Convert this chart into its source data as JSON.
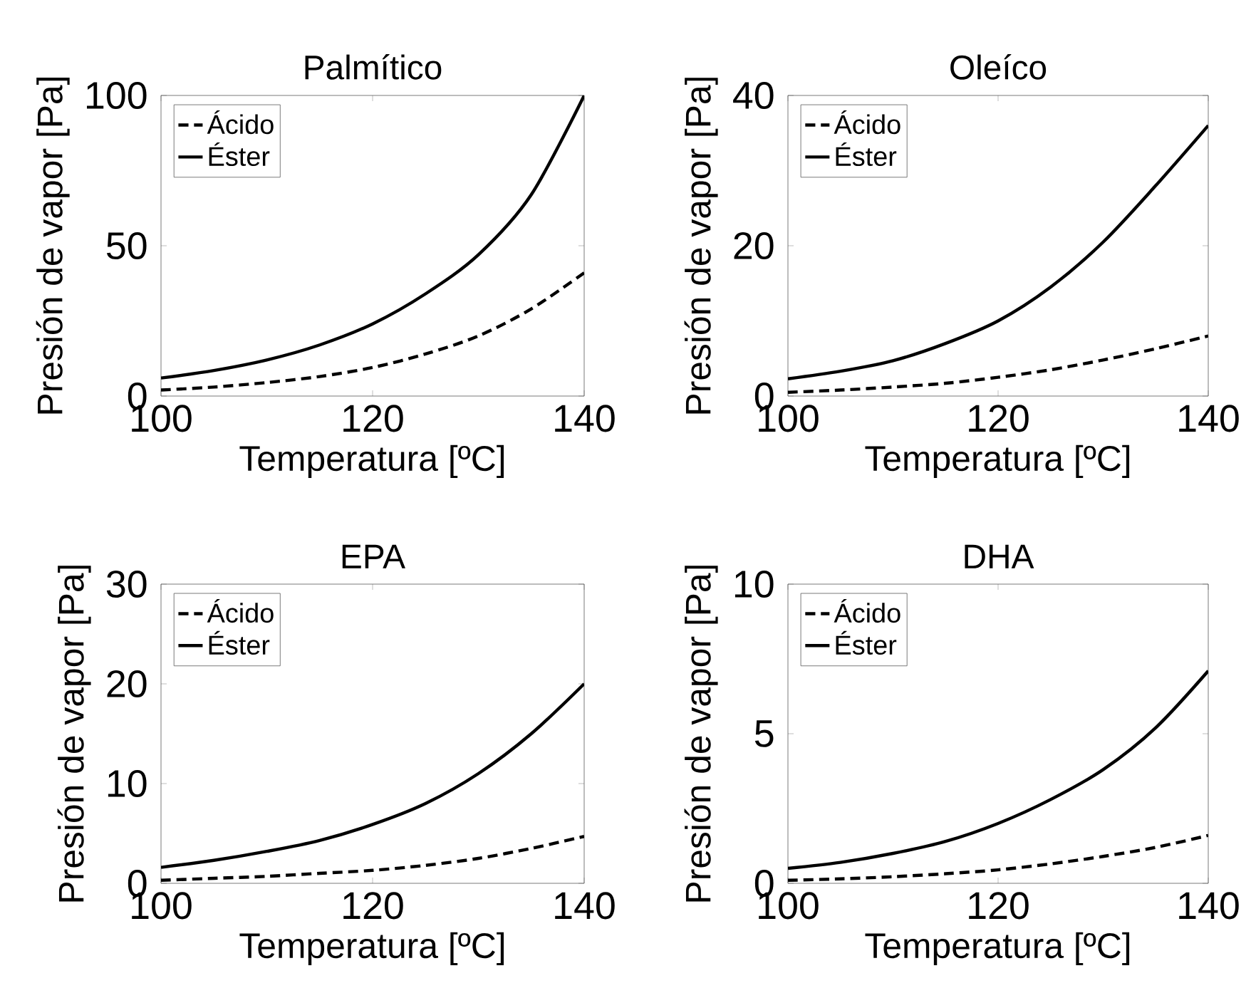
{
  "chart_data": [
    {
      "type": "line",
      "title": "Palmítico",
      "xlabel": "Temperatura [ºC]",
      "ylabel": "Presión de vapor [Pa]",
      "x": [
        100,
        105,
        110,
        115,
        120,
        125,
        130,
        135,
        140
      ],
      "xlim": [
        100,
        140
      ],
      "xticks": [
        100,
        120,
        140
      ],
      "ylim": [
        0,
        100
      ],
      "yticks": [
        0,
        50,
        100
      ],
      "legend": "top left",
      "grid": false,
      "series": [
        {
          "name": "Ácido",
          "color": "#000000",
          "line_style": "dashed",
          "values": [
            2,
            3,
            4.5,
            6.5,
            9.5,
            14,
            20,
            29,
            41
          ]
        },
        {
          "name": "Éster",
          "color": "#000000",
          "line_style": "solid",
          "values": [
            6,
            8.5,
            12,
            17,
            24,
            34,
            47,
            67,
            100
          ]
        }
      ]
    },
    {
      "type": "line",
      "title": "Oleíco",
      "xlabel": "Temperatura [ºC]",
      "ylabel": "Presión de vapor [Pa]",
      "x": [
        100,
        105,
        110,
        115,
        120,
        125,
        130,
        135,
        140
      ],
      "xlim": [
        100,
        140
      ],
      "xticks": [
        100,
        120,
        140
      ],
      "ylim": [
        0,
        40
      ],
      "yticks": [
        0,
        20,
        40
      ],
      "legend": "top left",
      "grid": false,
      "series": [
        {
          "name": "Ácido",
          "color": "#000000",
          "line_style": "dashed",
          "values": [
            0.5,
            0.8,
            1.2,
            1.7,
            2.5,
            3.5,
            4.8,
            6.3,
            8
          ]
        },
        {
          "name": "Éster",
          "color": "#000000",
          "line_style": "solid",
          "values": [
            2.3,
            3.3,
            4.7,
            7,
            10,
            14.5,
            20.5,
            28,
            36
          ]
        }
      ]
    },
    {
      "type": "line",
      "title": "EPA",
      "xlabel": "Temperatura [ºC]",
      "ylabel": "Presión de vapor [Pa]",
      "x": [
        100,
        105,
        110,
        115,
        120,
        125,
        130,
        135,
        140
      ],
      "xlim": [
        100,
        140
      ],
      "xticks": [
        100,
        120,
        140
      ],
      "ylim": [
        0,
        30
      ],
      "yticks": [
        0,
        10,
        20,
        30
      ],
      "legend": "top left",
      "grid": false,
      "series": [
        {
          "name": "Ácido",
          "color": "#000000",
          "line_style": "dashed",
          "values": [
            0.3,
            0.5,
            0.7,
            1.0,
            1.3,
            1.8,
            2.5,
            3.5,
            4.7
          ]
        },
        {
          "name": "Éster",
          "color": "#000000",
          "line_style": "solid",
          "values": [
            1.6,
            2.3,
            3.2,
            4.3,
            5.9,
            8,
            11,
            15,
            20
          ]
        }
      ]
    },
    {
      "type": "line",
      "title": "DHA",
      "xlabel": "Temperatura [ºC]",
      "ylabel": "Presión de vapor [Pa]",
      "x": [
        100,
        105,
        110,
        115,
        120,
        125,
        130,
        135,
        140
      ],
      "xlim": [
        100,
        140
      ],
      "xticks": [
        100,
        120,
        140
      ],
      "ylim": [
        0,
        10
      ],
      "yticks": [
        0,
        5,
        10
      ],
      "legend": "top left",
      "grid": false,
      "series": [
        {
          "name": "Ácido",
          "color": "#000000",
          "line_style": "dashed",
          "values": [
            0.1,
            0.15,
            0.22,
            0.32,
            0.45,
            0.65,
            0.9,
            1.2,
            1.6
          ]
        },
        {
          "name": "Éster",
          "color": "#000000",
          "line_style": "solid",
          "values": [
            0.5,
            0.7,
            1.0,
            1.4,
            2.0,
            2.8,
            3.8,
            5.2,
            7.1
          ]
        }
      ]
    }
  ]
}
